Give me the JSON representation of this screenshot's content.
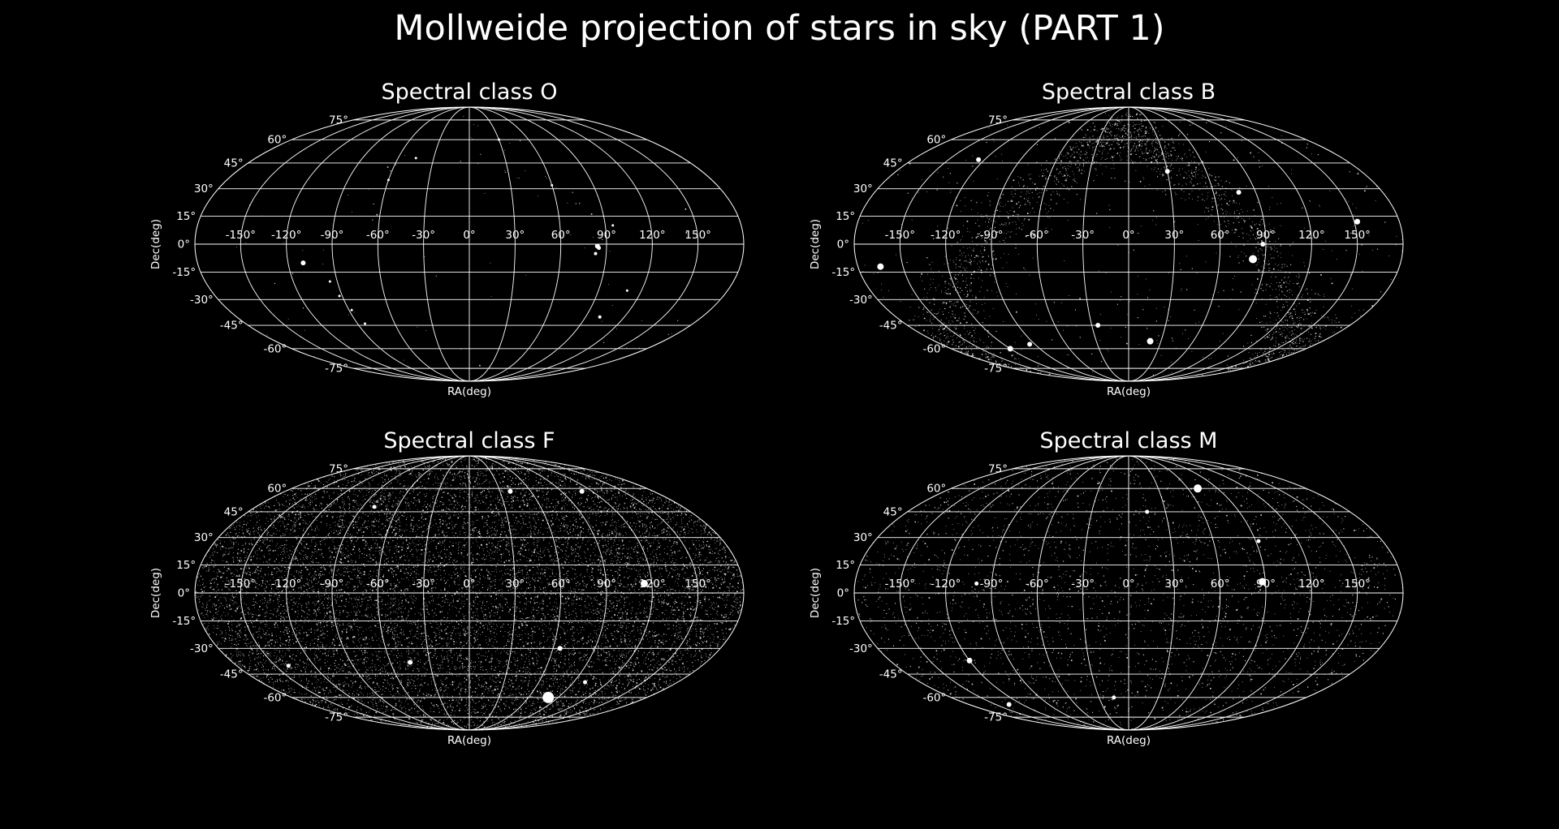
{
  "figure": {
    "title": "Mollweide projection of stars in sky (PART 1)",
    "background": "#000000",
    "foreground": "#ffffff"
  },
  "chart_data": [
    {
      "type": "scatter",
      "projection": "mollweide",
      "title": "Spectral class O",
      "xlabel": "RA(deg)",
      "ylabel": "Dec(deg)",
      "xlim": [
        -180,
        180
      ],
      "ylim": [
        -90,
        90
      ],
      "grid": true,
      "xticks": [
        -150,
        -120,
        -90,
        -60,
        -30,
        0,
        30,
        60,
        90,
        120,
        150
      ],
      "xtick_labels": [
        "-150°",
        "-120°",
        "-90°",
        "-60°",
        "-30°",
        "0°",
        "30°",
        "60°",
        "90°",
        "120°",
        "150°"
      ],
      "yticks": [
        75,
        60,
        45,
        30,
        15,
        0,
        -15,
        -30,
        -45,
        -60,
        -75
      ],
      "ytick_labels": [
        "75°",
        "60°",
        "45°",
        "30°",
        "15°",
        "0°",
        "-15°",
        "-30°",
        "-45°",
        "-60°",
        "-75°"
      ],
      "density": "sparse",
      "points": [
        {
          "ra": -110,
          "dec": -10,
          "size": 3
        },
        {
          "ra": 84,
          "dec": -1,
          "size": 3
        },
        {
          "ra": 85,
          "dec": -2,
          "size": 2.5
        },
        {
          "ra": 83,
          "dec": -5,
          "size": 2
        },
        {
          "ra": 101,
          "dec": -40,
          "size": 2
        },
        {
          "ra": -95,
          "dec": -20,
          "size": 1.5
        },
        {
          "ra": -92,
          "dec": -28,
          "size": 1.5
        },
        {
          "ra": -88,
          "dec": -36,
          "size": 1.5
        },
        {
          "ra": -84,
          "dec": -44,
          "size": 1.5
        },
        {
          "ra": -60,
          "dec": 35,
          "size": 1.5
        },
        {
          "ra": -45,
          "dec": 48,
          "size": 1.5
        },
        {
          "ra": 30,
          "dec": 60,
          "size": 1.5
        },
        {
          "ra": 60,
          "dec": 32,
          "size": 1.5
        },
        {
          "ra": 95,
          "dec": 10,
          "size": 1.5
        },
        {
          "ra": 110,
          "dec": -25,
          "size": 1.5
        }
      ]
    },
    {
      "type": "scatter",
      "projection": "mollweide",
      "title": "Spectral class B",
      "xlabel": "RA(deg)",
      "ylabel": "Dec(deg)",
      "xlim": [
        -180,
        180
      ],
      "ylim": [
        -90,
        90
      ],
      "grid": true,
      "xticks": [
        -150,
        -120,
        -90,
        -60,
        -30,
        0,
        30,
        60,
        90,
        120,
        150
      ],
      "xtick_labels": [
        "-150°",
        "-120°",
        "-90°",
        "-60°",
        "-30°",
        "0°",
        "30°",
        "60°",
        "90°",
        "120°",
        "150°"
      ],
      "yticks": [
        75,
        60,
        45,
        30,
        15,
        0,
        -15,
        -30,
        -45,
        -60,
        -75
      ],
      "ytick_labels": [
        "75°",
        "60°",
        "45°",
        "30°",
        "15°",
        "0°",
        "-15°",
        "-30°",
        "-45°",
        "-60°",
        "-75°"
      ],
      "density": "dense, concentrated along the galactic plane band",
      "points": [
        {
          "ra": -165,
          "dec": -12,
          "size": 4
        },
        {
          "ra": 82,
          "dec": -8,
          "size": 5
        },
        {
          "ra": 20,
          "dec": -55,
          "size": 4
        },
        {
          "ra": 152,
          "dec": 12,
          "size": 3.5
        },
        {
          "ra": -125,
          "dec": 47,
          "size": 3
        },
        {
          "ra": -120,
          "dec": -60,
          "size": 3.5
        },
        {
          "ra": -95,
          "dec": -57,
          "size": 3
        },
        {
          "ra": 88,
          "dec": 0,
          "size": 3
        },
        {
          "ra": 78,
          "dec": 28,
          "size": 3
        },
        {
          "ra": 30,
          "dec": 40,
          "size": 3
        },
        {
          "ra": -25,
          "dec": -45,
          "size": 3
        }
      ]
    },
    {
      "type": "scatter",
      "projection": "mollweide",
      "title": "Spectral class F",
      "xlabel": "RA(deg)",
      "ylabel": "Dec(deg)",
      "xlim": [
        -180,
        180
      ],
      "ylim": [
        -90,
        90
      ],
      "grid": true,
      "xticks": [
        -150,
        -120,
        -90,
        -60,
        -30,
        0,
        30,
        60,
        90,
        120,
        150
      ],
      "xtick_labels": [
        "-150°",
        "-120°",
        "-90°",
        "-60°",
        "-30°",
        "0°",
        "30°",
        "60°",
        "90°",
        "120°",
        "150°"
      ],
      "yticks": [
        75,
        60,
        45,
        30,
        15,
        0,
        -15,
        -30,
        -45,
        -60,
        -75
      ],
      "ytick_labels": [
        "75°",
        "60°",
        "45°",
        "30°",
        "15°",
        "0°",
        "-15°",
        "-30°",
        "-45°",
        "-60°",
        "-75°"
      ],
      "density": "very dense, uniform over the whole sky",
      "points": [
        {
          "ra": 80,
          "dec": -60,
          "size": 7
        },
        {
          "ra": 115,
          "dec": 5,
          "size": 4.5
        },
        {
          "ra": 65,
          "dec": -30,
          "size": 3
        },
        {
          "ra": -45,
          "dec": -38,
          "size": 3
        },
        {
          "ra": 40,
          "dec": 58,
          "size": 3
        },
        {
          "ra": 110,
          "dec": 58,
          "size": 3
        },
        {
          "ra": -80,
          "dec": 48,
          "size": 2.5
        },
        {
          "ra": -140,
          "dec": -40,
          "size": 2.5
        },
        {
          "ra": 100,
          "dec": -50,
          "size": 2.5
        }
      ]
    },
    {
      "type": "scatter",
      "projection": "mollweide",
      "title": "Spectral class M",
      "xlabel": "RA(deg)",
      "ylabel": "Dec(deg)",
      "xlim": [
        -180,
        180
      ],
      "ylim": [
        -90,
        90
      ],
      "grid": true,
      "xticks": [
        -150,
        -120,
        -90,
        -60,
        -30,
        0,
        30,
        60,
        90,
        120,
        150
      ],
      "xtick_labels": [
        "-150°",
        "-120°",
        "-90°",
        "-60°",
        "-30°",
        "0°",
        "30°",
        "60°",
        "90°",
        "120°",
        "150°"
      ],
      "yticks": [
        75,
        60,
        45,
        30,
        15,
        0,
        -15,
        -30,
        -45,
        -60,
        -75
      ],
      "ytick_labels": [
        "75°",
        "60°",
        "45°",
        "30°",
        "15°",
        "0°",
        "-15°",
        "-30°",
        "-45°",
        "-60°",
        "-75°"
      ],
      "density": "moderate, uniform over the whole sky",
      "points": [
        {
          "ra": 70,
          "dec": 60,
          "size": 5
        },
        {
          "ra": 88,
          "dec": 6,
          "size": 4.5
        },
        {
          "ra": -120,
          "dec": -37,
          "size": 3.5
        },
        {
          "ra": -135,
          "dec": -65,
          "size": 3
        },
        {
          "ra": 15,
          "dec": 45,
          "size": 2.5
        },
        {
          "ra": 92,
          "dec": 28,
          "size": 2.5
        },
        {
          "ra": -15,
          "dec": -60,
          "size": 2.5
        },
        {
          "ra": -100,
          "dec": 5,
          "size": 2.5
        }
      ]
    }
  ]
}
